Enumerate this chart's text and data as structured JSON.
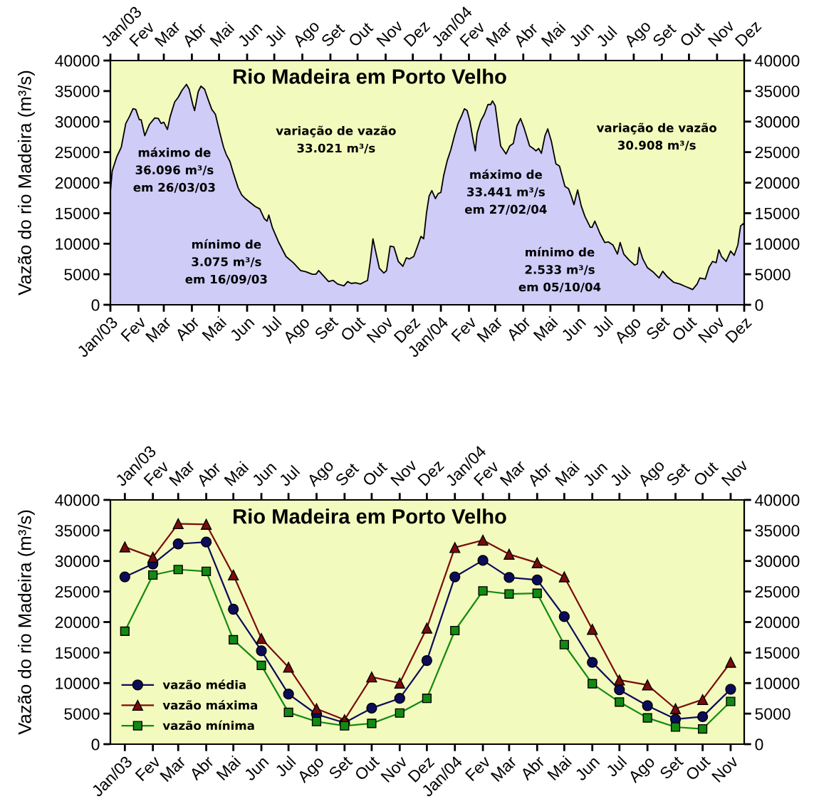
{
  "chart_data": [
    {
      "type": "area",
      "title": "Rio Madeira em Porto Velho",
      "ylabel": "Vazão do rio Madeira (m³/s)",
      "color": "#d0ccf8",
      "x": [
        "2003-01-01",
        "2003-01-03",
        "2003-01-08",
        "2003-01-13",
        "2003-01-18",
        "2003-01-22",
        "2003-01-26",
        "2003-01-29",
        "2003-02-02",
        "2003-02-04",
        "2003-02-08",
        "2003-02-13",
        "2003-02-19",
        "2003-02-23",
        "2003-02-26",
        "2003-03-01",
        "2003-03-05",
        "2003-03-08",
        "2003-03-13",
        "2003-03-17",
        "2003-03-21",
        "2003-03-26",
        "2003-03-29",
        "2003-04-02",
        "2003-04-04",
        "2003-04-08",
        "2003-04-11",
        "2003-04-15",
        "2003-04-19",
        "2003-04-23",
        "2003-04-27",
        "2003-05-02",
        "2003-05-06",
        "2003-05-09",
        "2003-05-13",
        "2003-05-17",
        "2003-05-22",
        "2003-05-26",
        "2003-05-30",
        "2003-06-04",
        "2003-06-10",
        "2003-06-15",
        "2003-06-20",
        "2003-06-23",
        "2003-06-25",
        "2003-06-29",
        "2003-07-06",
        "2003-07-14",
        "2003-07-22",
        "2003-07-30",
        "2003-08-05",
        "2003-08-12",
        "2003-08-16",
        "2003-08-19",
        "2003-08-24",
        "2003-08-30",
        "2003-09-04",
        "2003-09-09",
        "2003-09-16",
        "2003-09-20",
        "2003-09-24",
        "2003-09-29",
        "2003-10-04",
        "2003-10-12",
        "2003-10-15",
        "2003-10-18",
        "2003-10-21",
        "2003-10-25",
        "2003-10-30",
        "2003-11-02",
        "2003-11-06",
        "2003-11-10",
        "2003-11-15",
        "2003-11-20",
        "2003-11-24",
        "2003-11-27",
        "2003-12-02",
        "2003-12-06",
        "2003-12-10",
        "2003-12-13",
        "2003-12-16",
        "2003-12-19",
        "2003-12-22",
        "2003-12-26",
        "2003-12-29",
        "2004-01-01",
        "2004-01-04",
        "2004-01-08",
        "2004-01-12",
        "2004-01-16",
        "2004-01-20",
        "2004-01-24",
        "2004-01-27",
        "2004-01-30",
        "2004-02-02",
        "2004-02-05",
        "2004-02-08",
        "2004-02-10",
        "2004-02-14",
        "2004-02-18",
        "2004-02-22",
        "2004-02-25",
        "2004-02-27",
        "2004-03-01",
        "2004-03-04",
        "2004-03-07",
        "2004-03-13",
        "2004-03-17",
        "2004-03-21",
        "2004-03-25",
        "2004-03-29",
        "2004-04-02",
        "2004-04-08",
        "2004-04-12",
        "2004-04-15",
        "2004-04-18",
        "2004-04-21",
        "2004-04-25",
        "2004-04-28",
        "2004-05-02",
        "2004-05-07",
        "2004-05-11",
        "2004-05-17",
        "2004-05-21",
        "2004-05-24",
        "2004-05-27",
        "2004-05-31",
        "2004-06-04",
        "2004-06-08",
        "2004-06-14",
        "2004-06-16",
        "2004-06-19",
        "2004-06-25",
        "2004-06-30",
        "2004-07-04",
        "2004-07-09",
        "2004-07-14",
        "2004-07-17",
        "2004-07-21",
        "2004-07-27",
        "2004-08-02",
        "2004-08-05",
        "2004-08-07",
        "2004-08-11",
        "2004-08-16",
        "2004-08-23",
        "2004-08-29",
        "2004-09-02",
        "2004-09-07",
        "2004-09-14",
        "2004-09-21",
        "2004-09-27",
        "2004-10-02",
        "2004-10-05",
        "2004-10-10",
        "2004-10-13",
        "2004-10-19",
        "2004-10-23",
        "2004-10-27",
        "2004-10-31",
        "2004-11-03",
        "2004-11-06",
        "2004-11-11",
        "2004-11-16",
        "2004-11-20",
        "2004-11-24",
        "2004-11-27",
        "2004-11-30",
        "2004-12-01"
      ],
      "values": [
        18500,
        21900,
        24200,
        25800,
        29700,
        30800,
        32100,
        32000,
        30300,
        30300,
        27700,
        29500,
        30600,
        30500,
        29700,
        29900,
        28700,
        30800,
        33200,
        34000,
        35100,
        36100,
        35300,
        32800,
        31800,
        34900,
        35800,
        35300,
        33600,
        32000,
        31200,
        28100,
        25800,
        24600,
        23500,
        21500,
        19200,
        18000,
        17400,
        16800,
        16100,
        15700,
        14100,
        13700,
        14700,
        12600,
        10200,
        7900,
        6900,
        5600,
        5400,
        5000,
        5000,
        5600,
        4800,
        3800,
        4000,
        3400,
        3100,
        3800,
        3500,
        3600,
        3400,
        4000,
        7100,
        10800,
        8700,
        6000,
        5200,
        5600,
        9600,
        9500,
        7100,
        6300,
        7700,
        7500,
        7900,
        9500,
        11200,
        10800,
        14900,
        17800,
        18700,
        17400,
        18200,
        18400,
        21100,
        23600,
        25400,
        27700,
        29700,
        31000,
        32100,
        31800,
        30100,
        27500,
        25200,
        28100,
        30100,
        31200,
        32800,
        32800,
        33400,
        32600,
        29300,
        26000,
        24700,
        26000,
        26400,
        29300,
        30500,
        28900,
        26000,
        25600,
        25200,
        25600,
        24800,
        27700,
        28800,
        26800,
        23100,
        22700,
        19400,
        19000,
        17800,
        16400,
        18800,
        16200,
        14500,
        12700,
        12700,
        13700,
        11600,
        10200,
        10300,
        9800,
        8300,
        10200,
        8300,
        7300,
        6500,
        6700,
        9400,
        7500,
        6100,
        5300,
        4400,
        5500,
        4600,
        3700,
        3400,
        3000,
        2700,
        2500,
        3400,
        4400,
        4200,
        6100,
        7100,
        6900,
        9000,
        7900,
        7100,
        8800,
        8100,
        9800,
        12900,
        13300,
        13000
      ],
      "xlim": [
        "2003-01-01",
        "2004-12-01"
      ],
      "xticks": [
        {
          "value": "2003-01-01",
          "label": "Jan/03"
        },
        {
          "value": "2003-02-01",
          "label": "Fev"
        },
        {
          "value": "2003-03-01",
          "label": "Mar"
        },
        {
          "value": "2003-04-01",
          "label": "Abr"
        },
        {
          "value": "2003-05-01",
          "label": "Mai"
        },
        {
          "value": "2003-06-01",
          "label": "Jun"
        },
        {
          "value": "2003-07-01",
          "label": "Jul"
        },
        {
          "value": "2003-08-01",
          "label": "Ago"
        },
        {
          "value": "2003-09-01",
          "label": "Set"
        },
        {
          "value": "2003-10-01",
          "label": "Out"
        },
        {
          "value": "2003-11-01",
          "label": "Nov"
        },
        {
          "value": "2003-12-01",
          "label": "Dez"
        },
        {
          "value": "2004-01-01",
          "label": "Jan/04"
        },
        {
          "value": "2004-02-01",
          "label": "Fev"
        },
        {
          "value": "2004-03-01",
          "label": "Mar"
        },
        {
          "value": "2004-04-01",
          "label": "Abr"
        },
        {
          "value": "2004-05-01",
          "label": "Mai"
        },
        {
          "value": "2004-06-01",
          "label": "Jun"
        },
        {
          "value": "2004-07-01",
          "label": "Jul"
        },
        {
          "value": "2004-08-01",
          "label": "Ago"
        },
        {
          "value": "2004-09-01",
          "label": "Set"
        },
        {
          "value": "2004-10-01",
          "label": "Out"
        },
        {
          "value": "2004-11-01",
          "label": "Nov"
        },
        {
          "value": "2004-12-01",
          "label": "Dez"
        }
      ],
      "x2lim": [
        "2003-01-01",
        "2004-12-01"
      ],
      "x2ticks": [
        {
          "value": "2003-01-01",
          "label": "Jan/03"
        },
        {
          "value": "2003-02-01",
          "label": "Fev"
        },
        {
          "value": "2003-03-01",
          "label": "Mar"
        },
        {
          "value": "2003-04-01",
          "label": "Abr"
        },
        {
          "value": "2003-05-01",
          "label": "Mai"
        },
        {
          "value": "2003-06-01",
          "label": "Jun"
        },
        {
          "value": "2003-07-01",
          "label": "Jul"
        },
        {
          "value": "2003-08-01",
          "label": "Ago"
        },
        {
          "value": "2003-09-01",
          "label": "Set"
        },
        {
          "value": "2003-10-01",
          "label": "Out"
        },
        {
          "value": "2003-11-01",
          "label": "Nov"
        },
        {
          "value": "2003-12-01",
          "label": "Dez"
        },
        {
          "value": "2004-01-01",
          "label": "Jan/04"
        },
        {
          "value": "2004-02-01",
          "label": "Fev"
        },
        {
          "value": "2004-03-01",
          "label": "Mar"
        },
        {
          "value": "2004-04-01",
          "label": "Abr"
        },
        {
          "value": "2004-05-01",
          "label": "Mai"
        },
        {
          "value": "2004-06-01",
          "label": "Jun"
        },
        {
          "value": "2004-07-01",
          "label": "Jul"
        },
        {
          "value": "2004-08-01",
          "label": "Ago"
        },
        {
          "value": "2004-09-01",
          "label": "Set"
        },
        {
          "value": "2004-10-01",
          "label": "Out"
        },
        {
          "value": "2004-11-01",
          "label": "Nov"
        },
        {
          "value": "2004-12-01",
          "label": "Dez"
        }
      ],
      "ylim": [
        0,
        40000
      ],
      "yticks": [
        0,
        5000,
        10000,
        15000,
        20000,
        25000,
        30000,
        35000,
        40000
      ],
      "y2lim": [
        0,
        40000
      ],
      "y2ticks": [
        0,
        5000,
        10000,
        15000,
        20000,
        25000,
        30000,
        35000,
        40000
      ],
      "grid": false,
      "annotations": [
        "máximo de\n36.096 m³/s\nem 26/03/03",
        "variação de vazão\n33.021 m³/s",
        "mínimo de\n3.075 m³/s\nem 16/09/03",
        "máximo de\n33.441 m³/s\nem 27/02/04",
        "variação de vazão\n30.908 m³/s",
        "mínimo de\n2.533 m³/s\nem 05/10/04"
      ]
    },
    {
      "type": "line",
      "title": "Rio Madeira em Porto Velho",
      "ylabel": "Vazão do rio Madeira (m³/s)",
      "x": [
        "2003-01",
        "2003-02",
        "2003-03",
        "2003-04",
        "2003-05",
        "2003-06",
        "2003-07",
        "2003-08",
        "2003-09",
        "2003-10",
        "2003-11",
        "2003-12",
        "2004-01",
        "2004-02",
        "2004-03",
        "2004-04",
        "2004-05",
        "2004-06",
        "2004-07",
        "2004-08",
        "2004-09",
        "2004-10",
        "2004-11"
      ],
      "series": [
        {
          "name": "vazão média",
          "color": "#0c0c5c",
          "marker": "circle",
          "values": [
            27400,
            29500,
            32800,
            33100,
            22100,
            15300,
            8200,
            4900,
            3500,
            5900,
            7500,
            13700,
            27400,
            30100,
            27300,
            26900,
            20900,
            13400,
            8900,
            6300,
            4100,
            4500,
            9000
          ]
        },
        {
          "name": "vazão máxima",
          "color": "#7a0c0c",
          "marker": "triangle",
          "values": [
            32300,
            30600,
            36100,
            36000,
            27700,
            17300,
            12600,
            5800,
            4000,
            11000,
            10000,
            19000,
            32200,
            33400,
            31100,
            29700,
            27400,
            18800,
            10500,
            9700,
            5800,
            7300,
            13400
          ]
        },
        {
          "name": "vazão mínima",
          "color": "#138a13",
          "marker": "square",
          "values": [
            18500,
            27700,
            28600,
            28300,
            17100,
            12900,
            5200,
            3700,
            3000,
            3400,
            5100,
            7500,
            18600,
            25100,
            24600,
            24700,
            16300,
            9900,
            6900,
            4300,
            2800,
            2500,
            7000
          ]
        }
      ],
      "xlim": [
        "2002-12-16",
        "2004-11-16"
      ],
      "xticks": [
        {
          "value": "2003-01",
          "label": "Jan/03"
        },
        {
          "value": "2003-02",
          "label": "Fev"
        },
        {
          "value": "2003-03",
          "label": "Mar"
        },
        {
          "value": "2003-04",
          "label": "Abr"
        },
        {
          "value": "2003-05",
          "label": "Mai"
        },
        {
          "value": "2003-06",
          "label": "Jun"
        },
        {
          "value": "2003-07",
          "label": "Jul"
        },
        {
          "value": "2003-08",
          "label": "Ago"
        },
        {
          "value": "2003-09",
          "label": "Set"
        },
        {
          "value": "2003-10",
          "label": "Out"
        },
        {
          "value": "2003-11",
          "label": "Nov"
        },
        {
          "value": "2003-12",
          "label": "Dez"
        },
        {
          "value": "2004-01",
          "label": "Jan/04"
        },
        {
          "value": "2004-02",
          "label": "Fev"
        },
        {
          "value": "2004-03",
          "label": "Mar"
        },
        {
          "value": "2004-04",
          "label": "Abr"
        },
        {
          "value": "2004-05",
          "label": "Mai"
        },
        {
          "value": "2004-06",
          "label": "Jun"
        },
        {
          "value": "2004-07",
          "label": "Jul"
        },
        {
          "value": "2004-08",
          "label": "Ago"
        },
        {
          "value": "2004-09",
          "label": "Set"
        },
        {
          "value": "2004-10",
          "label": "Out"
        },
        {
          "value": "2004-11",
          "label": "Nov"
        }
      ],
      "x2lim": [
        "2002-12-16",
        "2004-11-16"
      ],
      "x2ticks": [
        {
          "value": "2003-01",
          "label": "Jan/03"
        },
        {
          "value": "2003-02",
          "label": "Fev"
        },
        {
          "value": "2003-03",
          "label": "Mar"
        },
        {
          "value": "2003-04",
          "label": "Abr"
        },
        {
          "value": "2003-05",
          "label": "Mai"
        },
        {
          "value": "2003-06",
          "label": "Jun"
        },
        {
          "value": "2003-07",
          "label": "Jul"
        },
        {
          "value": "2003-08",
          "label": "Ago"
        },
        {
          "value": "2003-09",
          "label": "Set"
        },
        {
          "value": "2003-10",
          "label": "Out"
        },
        {
          "value": "2003-11",
          "label": "Nov"
        },
        {
          "value": "2003-12",
          "label": "Dez"
        },
        {
          "value": "2004-01",
          "label": "Jan/04"
        },
        {
          "value": "2004-02",
          "label": "Fev"
        },
        {
          "value": "2004-03",
          "label": "Mar"
        },
        {
          "value": "2004-04",
          "label": "Abr"
        },
        {
          "value": "2004-05",
          "label": "Mai"
        },
        {
          "value": "2004-06",
          "label": "Jun"
        },
        {
          "value": "2004-07",
          "label": "Jul"
        },
        {
          "value": "2004-08",
          "label": "Ago"
        },
        {
          "value": "2004-09",
          "label": "Set"
        },
        {
          "value": "2004-10",
          "label": "Out"
        },
        {
          "value": "2004-11",
          "label": "Nov"
        }
      ],
      "ylim": [
        0,
        40000
      ],
      "yticks": [
        0,
        5000,
        10000,
        15000,
        20000,
        25000,
        30000,
        35000,
        40000
      ],
      "y2lim": [
        0,
        40000
      ],
      "y2ticks": [
        0,
        5000,
        10000,
        15000,
        20000,
        25000,
        30000,
        35000,
        40000
      ],
      "grid": false,
      "legend": "bottom left"
    }
  ]
}
